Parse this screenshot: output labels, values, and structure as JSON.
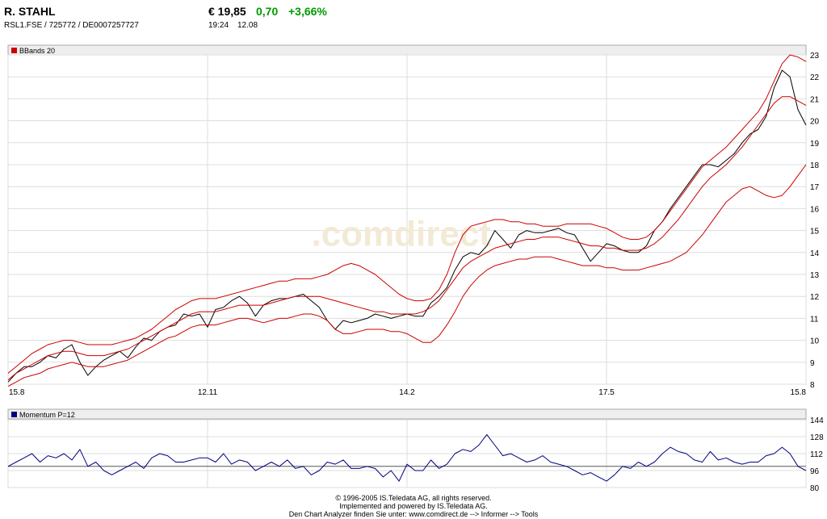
{
  "header": {
    "name": "R. STAHL",
    "ids": "RSL1.FSE / 725772 / DE0007257727",
    "price": "€ 19,85",
    "change": "0,70",
    "change_pct": "+3,66%",
    "time": "19:24",
    "date": "12.08",
    "change_color": "#009900"
  },
  "chart_data": [
    {
      "type": "line",
      "indicator_label": "BBands 20",
      "indicator_color": "#cc0000",
      "watermark": ".comdirect",
      "ylim": [
        8,
        23
      ],
      "yticks": [
        8,
        9,
        10,
        11,
        12,
        13,
        14,
        15,
        16,
        17,
        18,
        19,
        20,
        21,
        22,
        23
      ],
      "xtick_labels": [
        "15.8",
        "12.11",
        "14.2",
        "17.5",
        "15.8"
      ],
      "xtick_pos": [
        0,
        0.25,
        0.5,
        0.75,
        1.0
      ],
      "grid": true,
      "x": [
        0,
        0.01,
        0.02,
        0.03,
        0.04,
        0.05,
        0.06,
        0.07,
        0.08,
        0.09,
        0.1,
        0.11,
        0.12,
        0.13,
        0.14,
        0.15,
        0.16,
        0.17,
        0.18,
        0.19,
        0.2,
        0.21,
        0.22,
        0.23,
        0.24,
        0.25,
        0.26,
        0.27,
        0.28,
        0.29,
        0.3,
        0.31,
        0.32,
        0.33,
        0.34,
        0.35,
        0.36,
        0.37,
        0.38,
        0.39,
        0.4,
        0.41,
        0.42,
        0.43,
        0.44,
        0.45,
        0.46,
        0.47,
        0.48,
        0.49,
        0.5,
        0.51,
        0.52,
        0.53,
        0.54,
        0.55,
        0.56,
        0.57,
        0.58,
        0.59,
        0.6,
        0.61,
        0.62,
        0.63,
        0.64,
        0.65,
        0.66,
        0.67,
        0.68,
        0.69,
        0.7,
        0.71,
        0.72,
        0.73,
        0.74,
        0.75,
        0.76,
        0.77,
        0.78,
        0.79,
        0.8,
        0.81,
        0.82,
        0.83,
        0.84,
        0.85,
        0.86,
        0.87,
        0.88,
        0.89,
        0.9,
        0.91,
        0.92,
        0.93,
        0.94,
        0.95,
        0.96,
        0.97,
        0.98,
        0.99,
        1.0
      ],
      "series": [
        {
          "role": "price",
          "color": "#000000",
          "values": [
            8.1,
            8.5,
            8.8,
            8.8,
            9.0,
            9.3,
            9.2,
            9.6,
            9.8,
            9.0,
            8.4,
            8.8,
            9.1,
            9.3,
            9.5,
            9.2,
            9.7,
            10.1,
            10.0,
            10.4,
            10.6,
            10.7,
            11.2,
            11.1,
            11.2,
            10.6,
            11.4,
            11.5,
            11.8,
            12.0,
            11.7,
            11.1,
            11.6,
            11.8,
            11.9,
            11.9,
            12.0,
            12.1,
            11.8,
            11.5,
            10.9,
            10.5,
            10.9,
            10.8,
            10.9,
            11.0,
            11.2,
            11.1,
            11.0,
            11.1,
            11.2,
            11.1,
            11.1,
            11.7,
            12.0,
            12.4,
            13.2,
            13.8,
            14.0,
            13.9,
            14.3,
            15.0,
            14.6,
            14.2,
            14.8,
            15.0,
            14.9,
            14.9,
            15.0,
            15.1,
            14.9,
            14.8,
            14.2,
            13.6,
            14.0,
            14.4,
            14.3,
            14.1,
            14.0,
            14.0,
            14.3,
            15.0,
            15.4,
            16.0,
            16.5,
            17.0,
            17.5,
            18.0,
            18.0,
            17.9,
            18.2,
            18.5,
            19.0,
            19.4,
            19.6,
            20.2,
            21.5,
            22.3,
            22.0,
            20.5,
            19.8
          ]
        },
        {
          "role": "upper band",
          "color": "#cc0000",
          "values": [
            8.5,
            8.8,
            9.1,
            9.4,
            9.6,
            9.8,
            9.9,
            10.0,
            10.0,
            9.9,
            9.8,
            9.8,
            9.8,
            9.8,
            9.9,
            10.0,
            10.1,
            10.3,
            10.5,
            10.8,
            11.1,
            11.4,
            11.6,
            11.8,
            11.9,
            11.9,
            11.9,
            12.0,
            12.1,
            12.2,
            12.3,
            12.4,
            12.5,
            12.6,
            12.7,
            12.7,
            12.8,
            12.8,
            12.8,
            12.9,
            13.0,
            13.2,
            13.4,
            13.5,
            13.4,
            13.2,
            13.0,
            12.7,
            12.4,
            12.1,
            11.9,
            11.8,
            11.8,
            11.9,
            12.3,
            13.0,
            14.0,
            14.8,
            15.2,
            15.3,
            15.4,
            15.5,
            15.5,
            15.4,
            15.4,
            15.3,
            15.3,
            15.2,
            15.2,
            15.2,
            15.3,
            15.3,
            15.3,
            15.3,
            15.2,
            15.1,
            14.9,
            14.7,
            14.6,
            14.6,
            14.7,
            15.0,
            15.4,
            15.9,
            16.4,
            16.9,
            17.4,
            17.9,
            18.2,
            18.5,
            18.8,
            19.2,
            19.6,
            20.0,
            20.4,
            21.0,
            21.8,
            22.6,
            23.0,
            22.9,
            22.7
          ]
        },
        {
          "role": "middle band",
          "color": "#cc0000",
          "values": [
            8.2,
            8.5,
            8.7,
            8.9,
            9.1,
            9.3,
            9.4,
            9.5,
            9.5,
            9.4,
            9.3,
            9.3,
            9.3,
            9.4,
            9.5,
            9.6,
            9.8,
            10.0,
            10.2,
            10.4,
            10.6,
            10.8,
            11.0,
            11.2,
            11.3,
            11.3,
            11.3,
            11.4,
            11.5,
            11.6,
            11.6,
            11.6,
            11.6,
            11.7,
            11.8,
            11.9,
            12.0,
            12.0,
            12.0,
            12.0,
            11.9,
            11.8,
            11.7,
            11.6,
            11.5,
            11.4,
            11.3,
            11.3,
            11.2,
            11.2,
            11.2,
            11.2,
            11.3,
            11.5,
            11.8,
            12.3,
            12.8,
            13.3,
            13.6,
            13.8,
            14.0,
            14.2,
            14.3,
            14.4,
            14.5,
            14.6,
            14.6,
            14.7,
            14.7,
            14.7,
            14.6,
            14.5,
            14.4,
            14.3,
            14.3,
            14.2,
            14.2,
            14.1,
            14.1,
            14.1,
            14.2,
            14.4,
            14.7,
            15.1,
            15.5,
            16.0,
            16.5,
            17.0,
            17.4,
            17.7,
            18.0,
            18.4,
            18.8,
            19.3,
            19.8,
            20.3,
            20.8,
            21.1,
            21.1,
            20.9,
            20.7
          ]
        },
        {
          "role": "lower band",
          "color": "#cc0000",
          "values": [
            7.9,
            8.1,
            8.3,
            8.4,
            8.5,
            8.7,
            8.8,
            8.9,
            9.0,
            8.9,
            8.8,
            8.8,
            8.8,
            8.9,
            9.0,
            9.1,
            9.3,
            9.5,
            9.7,
            9.9,
            10.1,
            10.2,
            10.4,
            10.6,
            10.7,
            10.7,
            10.7,
            10.8,
            10.9,
            11.0,
            11.0,
            10.9,
            10.8,
            10.9,
            11.0,
            11.0,
            11.1,
            11.2,
            11.2,
            11.1,
            10.9,
            10.5,
            10.3,
            10.3,
            10.4,
            10.5,
            10.5,
            10.5,
            10.4,
            10.4,
            10.3,
            10.1,
            9.9,
            9.9,
            10.2,
            10.7,
            11.3,
            12.0,
            12.5,
            12.9,
            13.2,
            13.4,
            13.5,
            13.6,
            13.7,
            13.7,
            13.8,
            13.8,
            13.8,
            13.7,
            13.6,
            13.5,
            13.4,
            13.4,
            13.4,
            13.3,
            13.3,
            13.2,
            13.2,
            13.2,
            13.3,
            13.4,
            13.5,
            13.6,
            13.8,
            14.0,
            14.4,
            14.8,
            15.3,
            15.8,
            16.3,
            16.6,
            16.9,
            17.0,
            16.8,
            16.6,
            16.5,
            16.6,
            17.0,
            17.5,
            18.0
          ]
        }
      ]
    },
    {
      "type": "line",
      "indicator_label": "Momentum P=12",
      "indicator_color": "#000080",
      "ylim": [
        80,
        144
      ],
      "yticks": [
        80,
        96,
        112,
        128,
        144
      ],
      "reference_level": 100,
      "grid": true,
      "x": [
        0,
        0.01,
        0.02,
        0.03,
        0.04,
        0.05,
        0.06,
        0.07,
        0.08,
        0.09,
        0.1,
        0.11,
        0.12,
        0.13,
        0.14,
        0.15,
        0.16,
        0.17,
        0.18,
        0.19,
        0.2,
        0.21,
        0.22,
        0.23,
        0.24,
        0.25,
        0.26,
        0.27,
        0.28,
        0.29,
        0.3,
        0.31,
        0.32,
        0.33,
        0.34,
        0.35,
        0.36,
        0.37,
        0.38,
        0.39,
        0.4,
        0.41,
        0.42,
        0.43,
        0.44,
        0.45,
        0.46,
        0.47,
        0.48,
        0.49,
        0.5,
        0.51,
        0.52,
        0.53,
        0.54,
        0.55,
        0.56,
        0.57,
        0.58,
        0.59,
        0.6,
        0.61,
        0.62,
        0.63,
        0.64,
        0.65,
        0.66,
        0.67,
        0.68,
        0.69,
        0.7,
        0.71,
        0.72,
        0.73,
        0.74,
        0.75,
        0.76,
        0.77,
        0.78,
        0.79,
        0.8,
        0.81,
        0.82,
        0.83,
        0.84,
        0.85,
        0.86,
        0.87,
        0.88,
        0.89,
        0.9,
        0.91,
        0.92,
        0.93,
        0.94,
        0.95,
        0.96,
        0.97,
        0.98,
        0.99,
        1.0
      ],
      "series": [
        {
          "role": "momentum",
          "color": "#000080",
          "values": [
            100,
            104,
            108,
            112,
            104,
            110,
            108,
            112,
            106,
            116,
            100,
            104,
            96,
            92,
            96,
            100,
            104,
            98,
            108,
            112,
            110,
            104,
            104,
            106,
            108,
            108,
            104,
            112,
            102,
            106,
            104,
            96,
            100,
            104,
            100,
            106,
            98,
            100,
            92,
            96,
            104,
            102,
            106,
            98,
            98,
            100,
            98,
            90,
            96,
            86,
            102,
            96,
            96,
            106,
            98,
            102,
            112,
            116,
            114,
            120,
            130,
            120,
            110,
            112,
            108,
            104,
            106,
            110,
            104,
            102,
            100,
            96,
            92,
            94,
            90,
            86,
            92,
            100,
            98,
            104,
            100,
            104,
            112,
            118,
            114,
            112,
            106,
            104,
            114,
            106,
            108,
            104,
            102,
            104,
            104,
            110,
            112,
            118,
            112,
            100,
            96
          ]
        }
      ]
    }
  ],
  "footer": {
    "line1": "© 1996-2005 IS.Teledata AG, all rights reserved.",
    "line2": "Implemented and powered by IS.Teledata AG.",
    "line3": "Den Chart Analyzer finden Sie unter: www.comdirect.de --> Informer --> Tools"
  }
}
